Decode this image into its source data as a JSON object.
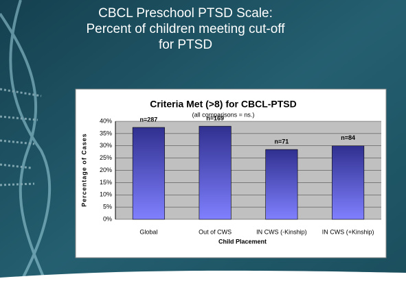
{
  "slide_title": [
    "CBCL Preschool PTSD Scale:",
    "Percent of children meeting cut-off",
    "for PTSD"
  ],
  "chart_data": {
    "type": "bar",
    "title": "Criteria Met (>8) for CBCL-PTSD",
    "subtitle": "(all comparisons = ns.)",
    "categories": [
      "Global",
      "Out of CWS",
      "IN CWS (-Kinship)",
      "IN CWS (+Kinship)"
    ],
    "values": [
      37.5,
      38,
      28.5,
      30
    ],
    "annotations": [
      "n=287",
      "n=169",
      "n=71",
      "n=84"
    ],
    "color": "#5050c8",
    "x_label": "Child Placement",
    "y_label": "Percentage of Cases",
    "ylim": [
      0,
      40
    ],
    "yticks": [
      {
        "value": 0,
        "label": "0%"
      },
      {
        "value": 5,
        "label": "5%"
      },
      {
        "value": 10,
        "label": "10%"
      },
      {
        "value": 15,
        "label": "15%"
      },
      {
        "value": 20,
        "label": "20%"
      },
      {
        "value": 25,
        "label": "25%"
      },
      {
        "value": 30,
        "label": "30%"
      },
      {
        "value": 35,
        "label": "35%"
      },
      {
        "value": 40,
        "label": "40%"
      }
    ],
    "grid": true
  }
}
